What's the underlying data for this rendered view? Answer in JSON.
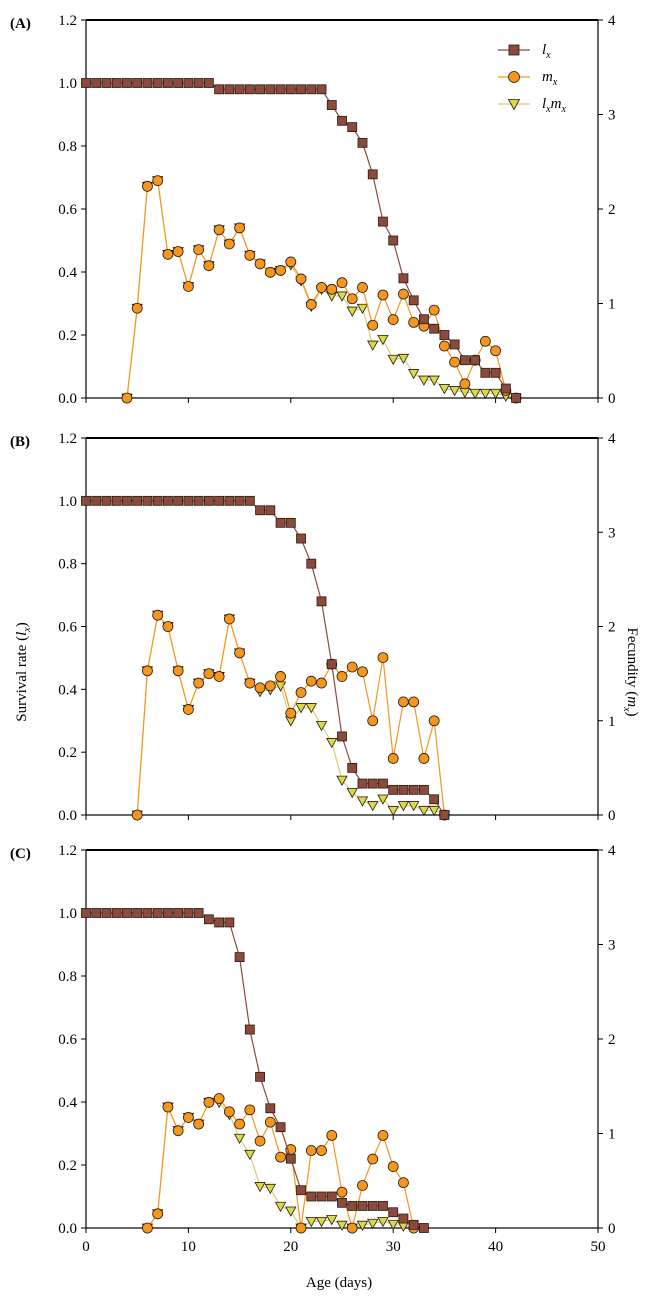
{
  "figure": {
    "xlabel_main": "Age (days)",
    "ylabel_left_main": "Survival rate (",
    "ylabel_left_var": "l",
    "ylabel_left_sub": "x",
    "ylabel_left_close": ")",
    "ylabel_right_main": "Fecundity (",
    "ylabel_right_var": "m",
    "ylabel_right_sub": "x",
    "ylabel_right_close": ")"
  },
  "legend": {
    "placement": "top-right of panel A",
    "items": [
      {
        "key": "lx",
        "var1": "l",
        "sub1": "x",
        "var2": "",
        "sub2": ""
      },
      {
        "key": "mx",
        "var1": "m",
        "sub1": "x",
        "var2": "",
        "sub2": ""
      },
      {
        "key": "lxmx",
        "var1": "l",
        "sub1": "x",
        "var2": "m",
        "sub2": "x"
      }
    ]
  },
  "colors": {
    "lx_fill": "#8b4a3c",
    "lx_line": "#8b4a3c",
    "mx_fill": "#f5961e",
    "mx_line": "#f5961e",
    "lxmx_fill": "#d9d94a",
    "lxmx_line": "#d4cf7a",
    "marker_edge": "#2a1a10"
  },
  "chart_data": [
    {
      "panel": "(A)",
      "type": "line",
      "xlim": [
        0,
        50
      ],
      "ylim_left": [
        0,
        1.2
      ],
      "ylim_right": [
        0,
        4
      ],
      "xticks": [
        0,
        10,
        20,
        30,
        40,
        50
      ],
      "yticks_left": [
        "0.0",
        "0.2",
        "0.4",
        "0.6",
        "0.8",
        "1.0",
        "1.2"
      ],
      "yticks_right": [
        "0",
        "1",
        "2",
        "3",
        "4"
      ],
      "series": [
        {
          "key": "lx",
          "axis": "left",
          "x": [
            0,
            1,
            2,
            3,
            4,
            5,
            6,
            7,
            8,
            9,
            10,
            11,
            12,
            13,
            14,
            15,
            16,
            17,
            18,
            19,
            20,
            21,
            22,
            23,
            24,
            25,
            26,
            27,
            28,
            29,
            30,
            31,
            32,
            33,
            34,
            35,
            36,
            37,
            38,
            39,
            40,
            41,
            42
          ],
          "y": [
            1,
            1,
            1,
            1,
            1,
            1,
            1,
            1,
            1,
            1,
            1,
            1,
            1,
            0.98,
            0.98,
            0.98,
            0.98,
            0.98,
            0.98,
            0.98,
            0.98,
            0.98,
            0.98,
            0.98,
            0.93,
            0.88,
            0.86,
            0.81,
            0.71,
            0.56,
            0.5,
            0.38,
            0.31,
            0.25,
            0.22,
            0.2,
            0.17,
            0.12,
            0.12,
            0.08,
            0.08,
            0.03,
            0.0
          ]
        },
        {
          "key": "mx",
          "axis": "right",
          "x": [
            4,
            5,
            6,
            7,
            8,
            9,
            10,
            11,
            12,
            13,
            14,
            15,
            16,
            17,
            18,
            19,
            20,
            21,
            22,
            23,
            24,
            25,
            26,
            27,
            28,
            29,
            30,
            31,
            32,
            33,
            34,
            35,
            36,
            37,
            38,
            39,
            40,
            41,
            42
          ],
          "y": [
            0,
            0.95,
            2.24,
            2.3,
            1.52,
            1.55,
            1.18,
            1.57,
            1.4,
            1.78,
            1.63,
            1.8,
            1.51,
            1.42,
            1.33,
            1.35,
            1.44,
            1.26,
            0.99,
            1.17,
            1.15,
            1.22,
            1.05,
            1.17,
            0.77,
            1.09,
            0.83,
            1.1,
            0.8,
            0.76,
            0.93,
            0.55,
            0.38,
            0.15,
            0.4,
            0.6,
            0.5,
            0.08,
            0.0
          ]
        },
        {
          "key": "lxmx",
          "axis": "right",
          "x": [
            4,
            5,
            6,
            7,
            8,
            9,
            10,
            11,
            12,
            13,
            14,
            15,
            16,
            17,
            18,
            19,
            20,
            21,
            22,
            23,
            24,
            25,
            26,
            27,
            28,
            29,
            30,
            31,
            32,
            33,
            34,
            35,
            36,
            37,
            38,
            39,
            40,
            41,
            42
          ],
          "y": [
            0,
            0.95,
            2.24,
            2.3,
            1.52,
            1.55,
            1.18,
            1.57,
            1.4,
            1.78,
            1.63,
            1.8,
            1.51,
            1.42,
            1.33,
            1.35,
            1.41,
            1.24,
            0.97,
            1.15,
            1.08,
            1.08,
            0.92,
            0.95,
            0.56,
            0.62,
            0.41,
            0.42,
            0.26,
            0.19,
            0.19,
            0.1,
            0.08,
            0.06,
            0.05,
            0.05,
            0.05,
            0.02,
            0.0
          ]
        }
      ]
    },
    {
      "panel": "(B)",
      "type": "line",
      "xlim": [
        0,
        50
      ],
      "ylim_left": [
        0,
        1.2
      ],
      "ylim_right": [
        0,
        4
      ],
      "xticks": [
        0,
        10,
        20,
        30,
        40,
        50
      ],
      "yticks_left": [
        "0.0",
        "0.2",
        "0.4",
        "0.6",
        "0.8",
        "1.0",
        "1.2"
      ],
      "yticks_right": [
        "0",
        "1",
        "2",
        "3",
        "4"
      ],
      "series": [
        {
          "key": "lx",
          "axis": "left",
          "x": [
            0,
            1,
            2,
            3,
            4,
            5,
            6,
            7,
            8,
            9,
            10,
            11,
            12,
            13,
            14,
            15,
            16,
            17,
            18,
            19,
            20,
            21,
            22,
            23,
            24,
            25,
            26,
            27,
            28,
            29,
            30,
            31,
            32,
            33,
            34,
            35
          ],
          "y": [
            1,
            1,
            1,
            1,
            1,
            1,
            1,
            1,
            1,
            1,
            1,
            1,
            1,
            1,
            1,
            1,
            1,
            0.97,
            0.97,
            0.93,
            0.93,
            0.88,
            0.8,
            0.68,
            0.48,
            0.25,
            0.15,
            0.1,
            0.1,
            0.1,
            0.08,
            0.08,
            0.08,
            0.08,
            0.05,
            0.0
          ]
        },
        {
          "key": "mx",
          "axis": "right",
          "x": [
            5,
            6,
            7,
            8,
            9,
            10,
            11,
            12,
            13,
            14,
            15,
            16,
            17,
            18,
            19,
            20,
            21,
            22,
            23,
            24,
            25,
            26,
            27,
            28,
            29,
            30,
            31,
            32,
            33,
            34,
            35
          ],
          "y": [
            0,
            1.53,
            2.12,
            2.0,
            1.53,
            1.12,
            1.4,
            1.5,
            1.47,
            2.08,
            1.72,
            1.4,
            1.35,
            1.37,
            1.47,
            1.08,
            1.3,
            1.42,
            1.4,
            1.6,
            1.47,
            1.57,
            1.52,
            1.0,
            1.67,
            0.6,
            1.2,
            1.2,
            0.6,
            1.0,
            0.0
          ]
        },
        {
          "key": "lxmx",
          "axis": "right",
          "x": [
            5,
            6,
            7,
            8,
            9,
            10,
            11,
            12,
            13,
            14,
            15,
            16,
            17,
            18,
            19,
            20,
            21,
            22,
            23,
            24,
            25,
            26,
            27,
            28,
            29,
            30,
            31,
            32,
            33,
            34,
            35
          ],
          "y": [
            0,
            1.53,
            2.12,
            2.0,
            1.53,
            1.12,
            1.4,
            1.5,
            1.47,
            2.08,
            1.72,
            1.4,
            1.31,
            1.33,
            1.37,
            1.0,
            1.14,
            1.14,
            0.95,
            0.77,
            0.37,
            0.24,
            0.15,
            0.1,
            0.17,
            0.05,
            0.1,
            0.1,
            0.05,
            0.05,
            0.0
          ]
        }
      ]
    },
    {
      "panel": "(C)",
      "type": "line",
      "xlim": [
        0,
        50
      ],
      "ylim_left": [
        0,
        1.2
      ],
      "ylim_right": [
        0,
        4
      ],
      "xticks": [
        0,
        10,
        20,
        30,
        40,
        50
      ],
      "yticks_left": [
        "0.0",
        "0.2",
        "0.4",
        "0.6",
        "0.8",
        "1.0",
        "1.2"
      ],
      "yticks_right": [
        "0",
        "1",
        "2",
        "3",
        "4"
      ],
      "series": [
        {
          "key": "lx",
          "axis": "left",
          "x": [
            0,
            1,
            2,
            3,
            4,
            5,
            6,
            7,
            8,
            9,
            10,
            11,
            12,
            13,
            14,
            15,
            16,
            17,
            18,
            19,
            20,
            21,
            22,
            23,
            24,
            25,
            26,
            27,
            28,
            29,
            30,
            31,
            32,
            33
          ],
          "y": [
            1,
            1,
            1,
            1,
            1,
            1,
            1,
            1,
            1,
            1,
            1,
            1,
            0.98,
            0.97,
            0.97,
            0.86,
            0.63,
            0.48,
            0.38,
            0.32,
            0.22,
            0.12,
            0.1,
            0.1,
            0.1,
            0.08,
            0.07,
            0.07,
            0.07,
            0.07,
            0.05,
            0.03,
            0.01,
            0.0
          ]
        },
        {
          "key": "mx",
          "axis": "right",
          "x": [
            6,
            7,
            8,
            9,
            10,
            11,
            12,
            13,
            14,
            15,
            16,
            17,
            18,
            19,
            20,
            21,
            22,
            23,
            24,
            25,
            26,
            27,
            28,
            29,
            30,
            31,
            32
          ],
          "y": [
            0,
            0.15,
            1.28,
            1.03,
            1.17,
            1.1,
            1.33,
            1.37,
            1.23,
            1.1,
            1.25,
            0.92,
            1.12,
            0.75,
            0.83,
            0.0,
            0.82,
            0.82,
            0.98,
            0.38,
            0.0,
            0.45,
            0.73,
            0.98,
            0.65,
            0.48,
            0.0
          ]
        },
        {
          "key": "lxmx",
          "axis": "right",
          "x": [
            6,
            7,
            8,
            9,
            10,
            11,
            12,
            13,
            14,
            15,
            16,
            17,
            18,
            19,
            20,
            21,
            22,
            23,
            24,
            25,
            26,
            27,
            28,
            29,
            30,
            31,
            32
          ],
          "y": [
            0,
            0.15,
            1.28,
            1.03,
            1.17,
            1.1,
            1.33,
            1.33,
            1.2,
            0.95,
            0.78,
            0.44,
            0.42,
            0.23,
            0.18,
            0.0,
            0.07,
            0.07,
            0.09,
            0.03,
            0.0,
            0.03,
            0.05,
            0.07,
            0.04,
            0.02,
            0.0
          ]
        }
      ]
    }
  ]
}
